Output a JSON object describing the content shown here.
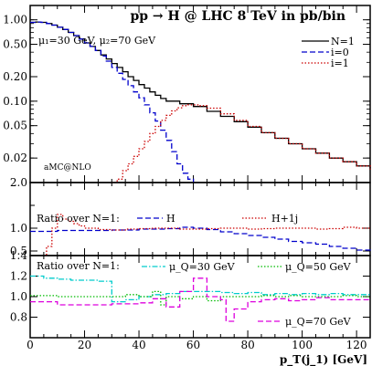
{
  "chart_data": [
    {
      "type": "line",
      "panel": "main",
      "title": "pp → H @ LHC 8 TeV in pb/bin",
      "subtitle": "μ₁=30 GeV, μ₂=70 GeV",
      "annotation": "aMC@NLO",
      "yscale": "log",
      "ylim": [
        0.01,
        1.5
      ],
      "xlim": [
        0,
        125
      ],
      "yticks": [
        0.02,
        0.05,
        0.1,
        0.2,
        0.5,
        1.0
      ],
      "ytick_labels": [
        "0.02",
        "0.05",
        "0.10",
        "0.20",
        "0.50",
        "1.00"
      ],
      "legend": "top-right",
      "series": [
        {
          "name": "N=1",
          "color": "#000000",
          "dash": "solid",
          "step": true,
          "points": [
            [
              0,
              0.93
            ],
            [
              2,
              0.94
            ],
            [
              4,
              0.93
            ],
            [
              6,
              0.9
            ],
            [
              8,
              0.86
            ],
            [
              10,
              0.81
            ],
            [
              12,
              0.76
            ],
            [
              14,
              0.7
            ],
            [
              16,
              0.64
            ],
            [
              18,
              0.58
            ],
            [
              20,
              0.52
            ],
            [
              22,
              0.47
            ],
            [
              24,
              0.42
            ],
            [
              26,
              0.37
            ],
            [
              28,
              0.33
            ],
            [
              30,
              0.29
            ],
            [
              32,
              0.26
            ],
            [
              34,
              0.23
            ],
            [
              36,
              0.2
            ],
            [
              38,
              0.18
            ],
            [
              40,
              0.16
            ],
            [
              42,
              0.145
            ],
            [
              44,
              0.13
            ],
            [
              46,
              0.118
            ],
            [
              48,
              0.108
            ],
            [
              50,
              0.1
            ],
            [
              55,
              0.093
            ],
            [
              60,
              0.086
            ],
            [
              65,
              0.075
            ],
            [
              70,
              0.065
            ],
            [
              75,
              0.056
            ],
            [
              80,
              0.048
            ],
            [
              85,
              0.041
            ],
            [
              90,
              0.035
            ],
            [
              95,
              0.03
            ],
            [
              100,
              0.026
            ],
            [
              105,
              0.023
            ],
            [
              110,
              0.02
            ],
            [
              115,
              0.018
            ],
            [
              120,
              0.016
            ],
            [
              125,
              0.0145
            ]
          ]
        },
        {
          "name": "i=0",
          "color": "#0000cc",
          "dash": "dashed",
          "step": true,
          "points": [
            [
              0,
              0.93
            ],
            [
              2,
              0.94
            ],
            [
              4,
              0.93
            ],
            [
              6,
              0.9
            ],
            [
              8,
              0.86
            ],
            [
              10,
              0.81
            ],
            [
              12,
              0.76
            ],
            [
              14,
              0.7
            ],
            [
              16,
              0.64
            ],
            [
              18,
              0.58
            ],
            [
              20,
              0.52
            ],
            [
              22,
              0.47
            ],
            [
              24,
              0.42
            ],
            [
              26,
              0.36
            ],
            [
              28,
              0.31
            ],
            [
              30,
              0.26
            ],
            [
              32,
              0.22
            ],
            [
              34,
              0.185
            ],
            [
              36,
              0.155
            ],
            [
              38,
              0.13
            ],
            [
              40,
              0.11
            ],
            [
              42,
              0.09
            ],
            [
              44,
              0.072
            ],
            [
              46,
              0.057
            ],
            [
              48,
              0.044
            ],
            [
              50,
              0.033
            ],
            [
              52,
              0.024
            ],
            [
              54,
              0.017
            ],
            [
              56,
              0.013
            ],
            [
              58,
              0.011
            ],
            [
              60,
              0.009
            ]
          ]
        },
        {
          "name": "i=1",
          "color": "#cc0000",
          "dash": "dotted",
          "step": true,
          "points": [
            [
              30,
              0.009
            ],
            [
              32,
              0.011
            ],
            [
              34,
              0.014
            ],
            [
              36,
              0.017
            ],
            [
              38,
              0.021
            ],
            [
              40,
              0.026
            ],
            [
              42,
              0.032
            ],
            [
              44,
              0.04
            ],
            [
              46,
              0.049
            ],
            [
              48,
              0.058
            ],
            [
              50,
              0.067
            ],
            [
              52,
              0.076
            ],
            [
              54,
              0.083
            ],
            [
              56,
              0.088
            ],
            [
              58,
              0.09
            ],
            [
              60,
              0.09
            ],
            [
              62,
              0.088
            ],
            [
              65,
              0.082
            ],
            [
              70,
              0.07
            ],
            [
              75,
              0.058
            ],
            [
              80,
              0.049
            ],
            [
              85,
              0.041
            ],
            [
              90,
              0.035
            ],
            [
              95,
              0.03
            ],
            [
              100,
              0.026
            ],
            [
              105,
              0.023
            ],
            [
              110,
              0.02
            ],
            [
              115,
              0.018
            ],
            [
              120,
              0.016
            ],
            [
              125,
              0.0145
            ]
          ]
        }
      ]
    },
    {
      "type": "line",
      "panel": "ratio-1",
      "ylabel_text": "Ratio over N=1:",
      "ylim": [
        0.4,
        2.0
      ],
      "yticks": [
        0.5,
        1.0,
        2.0
      ],
      "ytick_labels": [
        "0.5",
        "1.0",
        "2.0"
      ],
      "extra_tick": [
        1.5
      ],
      "xlim": [
        0,
        125
      ],
      "series": [
        {
          "name": "H",
          "color": "#0000cc",
          "dash": "dashed",
          "step": true,
          "points": [
            [
              0,
              0.93
            ],
            [
              10,
              0.95
            ],
            [
              20,
              0.95
            ],
            [
              30,
              0.96
            ],
            [
              40,
              0.98
            ],
            [
              50,
              0.99
            ],
            [
              55,
              1.02
            ],
            [
              60,
              1.0
            ],
            [
              65,
              0.97
            ],
            [
              70,
              0.92
            ],
            [
              75,
              0.88
            ],
            [
              80,
              0.84
            ],
            [
              85,
              0.8
            ],
            [
              90,
              0.76
            ],
            [
              95,
              0.71
            ],
            [
              100,
              0.68
            ],
            [
              105,
              0.65
            ],
            [
              110,
              0.6
            ],
            [
              115,
              0.56
            ],
            [
              120,
              0.52
            ],
            [
              125,
              0.5
            ]
          ]
        },
        {
          "name": "H+1j",
          "color": "#cc0000",
          "dash": "dotted",
          "step": true,
          "points": [
            [
              5,
              0.4
            ],
            [
              6,
              0.6
            ],
            [
              8,
              1.0
            ],
            [
              10,
              1.3
            ],
            [
              12,
              1.2
            ],
            [
              14,
              1.15
            ],
            [
              16,
              1.1
            ],
            [
              18,
              1.05
            ],
            [
              20,
              1.0
            ],
            [
              25,
              0.97
            ],
            [
              30,
              0.96
            ],
            [
              35,
              0.98
            ],
            [
              40,
              0.99
            ],
            [
              45,
              1.0
            ],
            [
              50,
              1.0
            ],
            [
              55,
              0.98
            ],
            [
              60,
              0.98
            ],
            [
              65,
              0.99
            ],
            [
              70,
              1.0
            ],
            [
              75,
              1.0
            ],
            [
              80,
              0.98
            ],
            [
              85,
              0.99
            ],
            [
              90,
              1.0
            ],
            [
              95,
              1.0
            ],
            [
              100,
              1.0
            ],
            [
              105,
              0.98
            ],
            [
              110,
              0.99
            ],
            [
              115,
              1.02
            ],
            [
              120,
              1.0
            ],
            [
              125,
              1.0
            ]
          ]
        }
      ]
    },
    {
      "type": "line",
      "panel": "ratio-2",
      "ylabel_text": "Ratio over N=1:",
      "ylim": [
        0.6,
        1.4
      ],
      "yticks": [
        0.8,
        1.0,
        1.2,
        1.4
      ],
      "ytick_labels": [
        "0.8",
        "1.0",
        "1.2",
        "1.4"
      ],
      "xlim": [
        0,
        125
      ],
      "xticks": [
        0,
        20,
        40,
        60,
        80,
        100,
        120
      ],
      "xtick_labels": [
        "0",
        "20",
        "40",
        "60",
        "80",
        "100",
        "120"
      ],
      "xlabel": "p_T(j_1) [GeV]",
      "series": [
        {
          "name": "μ_Q=30 GeV",
          "color": "#00cccc",
          "dash": "dashdot",
          "step": true,
          "points": [
            [
              0,
              1.2
            ],
            [
              5,
              1.18
            ],
            [
              10,
              1.17
            ],
            [
              15,
              1.16
            ],
            [
              20,
              1.16
            ],
            [
              25,
              1.15
            ],
            [
              28,
              1.15
            ],
            [
              30,
              0.95
            ],
            [
              35,
              0.97
            ],
            [
              40,
              1.0
            ],
            [
              45,
              1.02
            ],
            [
              50,
              1.03
            ],
            [
              55,
              1.05
            ],
            [
              60,
              1.05
            ],
            [
              65,
              1.05
            ],
            [
              70,
              1.04
            ],
            [
              75,
              1.03
            ],
            [
              80,
              1.04
            ],
            [
              85,
              1.02
            ],
            [
              90,
              1.03
            ],
            [
              95,
              1.02
            ],
            [
              100,
              1.03
            ],
            [
              105,
              1.02
            ],
            [
              110,
              1.03
            ],
            [
              115,
              1.02
            ],
            [
              120,
              1.02
            ],
            [
              125,
              1.02
            ]
          ]
        },
        {
          "name": "μ_Q=50 GeV",
          "color": "#00bb00",
          "dash": "dotted",
          "step": true,
          "points": [
            [
              0,
              1.01
            ],
            [
              10,
              1.0
            ],
            [
              20,
              1.0
            ],
            [
              30,
              1.0
            ],
            [
              35,
              1.02
            ],
            [
              40,
              1.0
            ],
            [
              45,
              1.05
            ],
            [
              48,
              0.92
            ],
            [
              50,
              1.0
            ],
            [
              55,
              0.98
            ],
            [
              60,
              1.0
            ],
            [
              65,
              0.96
            ],
            [
              70,
              1.0
            ],
            [
              75,
              1.0
            ],
            [
              80,
              1.0
            ],
            [
              85,
              1.01
            ],
            [
              90,
              1.0
            ],
            [
              95,
              1.01
            ],
            [
              100,
              1.0
            ],
            [
              105,
              1.0
            ],
            [
              110,
              1.0
            ],
            [
              115,
              1.01
            ],
            [
              120,
              1.0
            ],
            [
              125,
              1.0
            ]
          ]
        },
        {
          "name": "μ_Q=70 GeV",
          "color": "#dd00dd",
          "dash": "dashed",
          "step": true,
          "points": [
            [
              0,
              0.95
            ],
            [
              10,
              0.92
            ],
            [
              20,
              0.92
            ],
            [
              30,
              0.93
            ],
            [
              35,
              0.93
            ],
            [
              40,
              0.94
            ],
            [
              45,
              0.98
            ],
            [
              50,
              0.9
            ],
            [
              55,
              1.05
            ],
            [
              60,
              1.18
            ],
            [
              65,
              1.0
            ],
            [
              70,
              0.97
            ],
            [
              72,
              0.76
            ],
            [
              75,
              0.88
            ],
            [
              80,
              0.95
            ],
            [
              85,
              0.97
            ],
            [
              90,
              0.98
            ],
            [
              95,
              0.96
            ],
            [
              100,
              0.97
            ],
            [
              105,
              0.99
            ],
            [
              110,
              0.97
            ],
            [
              115,
              0.97
            ],
            [
              120,
              0.97
            ],
            [
              125,
              0.96
            ]
          ]
        }
      ]
    }
  ]
}
